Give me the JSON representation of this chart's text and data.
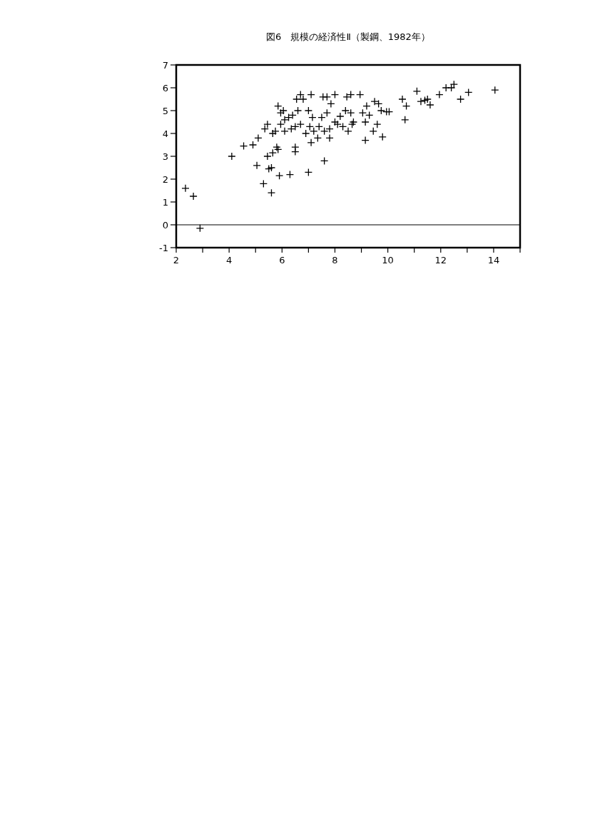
{
  "chart_data": {
    "type": "scatter",
    "title": "図6　規模の経済性Ⅱ（製鋼、1982年）",
    "marker": "cross",
    "grid": false,
    "xlim": [
      2,
      15
    ],
    "ylim": [
      -1,
      7
    ],
    "xticks": [
      2,
      {
        "value": 3,
        "label": null
      },
      4,
      {
        "value": 5,
        "label": null
      },
      6,
      {
        "value": 7,
        "label": null
      },
      8,
      {
        "value": 9,
        "label": null
      },
      10,
      {
        "value": 11,
        "label": null
      },
      12,
      {
        "value": 13,
        "label": null
      },
      14,
      {
        "value": 15,
        "label": null
      }
    ],
    "yticks": [
      -1,
      0,
      1,
      2,
      3,
      4,
      5,
      6,
      7
    ],
    "ref_lines": [
      {
        "axis": "y",
        "value": 0
      }
    ],
    "series": [
      {
        "color": "#000000",
        "x": [
          2.35,
          2.65,
          2.9,
          4.1,
          4.55,
          4.9,
          5.1,
          5.05,
          5.3,
          5.35,
          5.45,
          5.45,
          5.5,
          5.6,
          5.6,
          5.65,
          5.65,
          5.75,
          5.8,
          5.85,
          5.85,
          5.9,
          5.95,
          5.95,
          6.05,
          6.1,
          6.1,
          6.25,
          6.3,
          6.35,
          6.4,
          6.5,
          6.5,
          6.5,
          6.55,
          6.6,
          6.7,
          6.7,
          6.8,
          6.9,
          7.0,
          7.0,
          7.05,
          7.1,
          7.1,
          7.15,
          7.2,
          7.35,
          7.4,
          7.5,
          7.55,
          7.6,
          7.6,
          7.7,
          7.7,
          7.8,
          7.8,
          7.85,
          8.0,
          8.0,
          8.1,
          8.2,
          8.3,
          8.4,
          8.45,
          8.5,
          8.6,
          8.6,
          8.65,
          8.7,
          8.95,
          9.05,
          9.15,
          9.15,
          9.2,
          9.3,
          9.45,
          9.5,
          9.6,
          9.65,
          9.75,
          9.8,
          9.95,
          10.05,
          10.55,
          10.65,
          10.7,
          11.1,
          11.25,
          11.4,
          11.5,
          11.6,
          11.95,
          12.2,
          12.4,
          12.5,
          12.75,
          13.05,
          14.05
        ],
        "values": [
          1.6,
          1.25,
          -0.15,
          3.0,
          3.45,
          3.5,
          3.8,
          2.6,
          1.8,
          4.2,
          4.4,
          3.0,
          2.45,
          2.5,
          1.4,
          4.0,
          3.15,
          4.1,
          3.4,
          5.2,
          3.3,
          2.15,
          4.4,
          4.9,
          5.0,
          4.6,
          4.1,
          4.7,
          2.2,
          4.2,
          4.8,
          4.3,
          3.4,
          3.2,
          5.5,
          5.0,
          4.4,
          5.7,
          5.5,
          4.0,
          2.3,
          5.0,
          4.3,
          3.6,
          5.7,
          4.7,
          4.1,
          3.8,
          4.3,
          4.7,
          5.6,
          2.8,
          4.1,
          5.6,
          4.9,
          4.2,
          3.8,
          5.3,
          5.7,
          4.5,
          4.4,
          4.75,
          4.3,
          5.0,
          5.6,
          4.1,
          5.7,
          4.9,
          4.4,
          4.5,
          5.7,
          4.9,
          3.7,
          4.5,
          5.2,
          4.8,
          4.1,
          5.4,
          4.4,
          5.3,
          5.0,
          3.85,
          4.95,
          4.95,
          5.5,
          4.6,
          5.2,
          5.85,
          5.4,
          5.45,
          5.5,
          5.25,
          5.7,
          6.0,
          6.0,
          6.15,
          5.5,
          5.8,
          5.9
        ]
      }
    ]
  }
}
